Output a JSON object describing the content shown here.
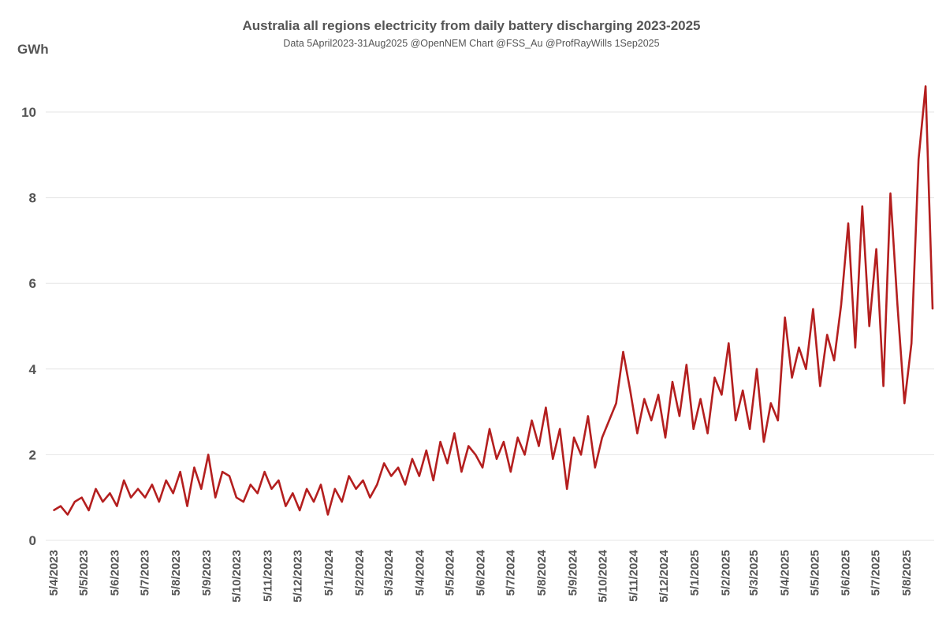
{
  "chart_data": {
    "type": "line",
    "title": "Australia all regions electricity from daily battery discharging 2023-2025",
    "subtitle": "Data 5April2023-31Aug2025 @OpenNEM Chart @FSS_Au @ProfRayWills 1Sep2025",
    "ylabel": "GWh",
    "xlabel": "",
    "ylim": [
      0,
      11
    ],
    "yticks": [
      "0",
      "2",
      "4",
      "6",
      "8",
      "10"
    ],
    "x_range": [
      "2023-04-05",
      "2025-08-31"
    ],
    "xtick_dates": [
      "2023-04-05",
      "2023-05-05",
      "2023-06-05",
      "2023-07-05",
      "2023-08-05",
      "2023-09-05",
      "2023-10-05",
      "2023-11-05",
      "2023-12-05",
      "2024-01-05",
      "2024-02-05",
      "2024-03-05",
      "2024-04-05",
      "2024-05-05",
      "2024-06-05",
      "2024-07-05",
      "2024-08-05",
      "2024-09-05",
      "2024-10-05",
      "2024-11-05",
      "2024-12-05",
      "2025-01-05",
      "2025-02-05",
      "2025-03-05",
      "2025-04-05",
      "2025-05-05",
      "2025-06-05",
      "2025-07-05",
      "2025-08-05"
    ],
    "xticks": [
      "5/4/2023",
      "5/5/2023",
      "5/6/2023",
      "5/7/2023",
      "5/8/2023",
      "5/9/2023",
      "5/10/2023",
      "5/11/2023",
      "5/12/2023",
      "5/1/2024",
      "5/2/2024",
      "5/3/2024",
      "5/4/2024",
      "5/5/2024",
      "5/6/2024",
      "5/7/2024",
      "5/8/2024",
      "5/9/2024",
      "5/10/2024",
      "5/11/2024",
      "5/12/2024",
      "5/1/2025",
      "5/2/2025",
      "5/3/2025",
      "5/4/2025",
      "5/5/2025",
      "5/6/2025",
      "5/7/2025",
      "5/8/2025"
    ],
    "grid": true,
    "legend": "none",
    "color": "#b41f1f",
    "values": [
      0.7,
      0.8,
      0.6,
      0.9,
      1.0,
      0.7,
      1.2,
      0.9,
      1.1,
      0.8,
      1.4,
      1.0,
      1.2,
      1.0,
      1.3,
      0.9,
      1.4,
      1.1,
      1.6,
      0.8,
      1.7,
      1.2,
      2.0,
      1.0,
      1.6,
      1.5,
      1.0,
      0.9,
      1.3,
      1.1,
      1.6,
      1.2,
      1.4,
      0.8,
      1.1,
      0.7,
      1.2,
      0.9,
      1.3,
      0.6,
      1.2,
      0.9,
      1.5,
      1.2,
      1.4,
      1.0,
      1.3,
      1.8,
      1.5,
      1.7,
      1.3,
      1.9,
      1.5,
      2.1,
      1.4,
      2.3,
      1.8,
      2.5,
      1.6,
      2.2,
      2.0,
      1.7,
      2.6,
      1.9,
      2.3,
      1.6,
      2.4,
      2.0,
      2.8,
      2.2,
      3.1,
      1.9,
      2.6,
      1.2,
      2.4,
      2.0,
      2.9,
      1.7,
      2.4,
      2.8,
      3.2,
      4.4,
      3.5,
      2.5,
      3.3,
      2.8,
      3.4,
      2.4,
      3.7,
      2.9,
      4.1,
      2.6,
      3.3,
      2.5,
      3.8,
      3.4,
      4.6,
      2.8,
      3.5,
      2.6,
      4.0,
      2.3,
      3.2,
      2.8,
      5.2,
      3.8,
      4.5,
      4.0,
      5.4,
      3.6,
      4.8,
      4.2,
      5.5,
      7.4,
      4.5,
      7.8,
      5.0,
      6.8,
      3.6,
      8.1,
      5.5,
      3.2,
      4.6,
      8.9,
      10.6,
      5.4
    ]
  }
}
